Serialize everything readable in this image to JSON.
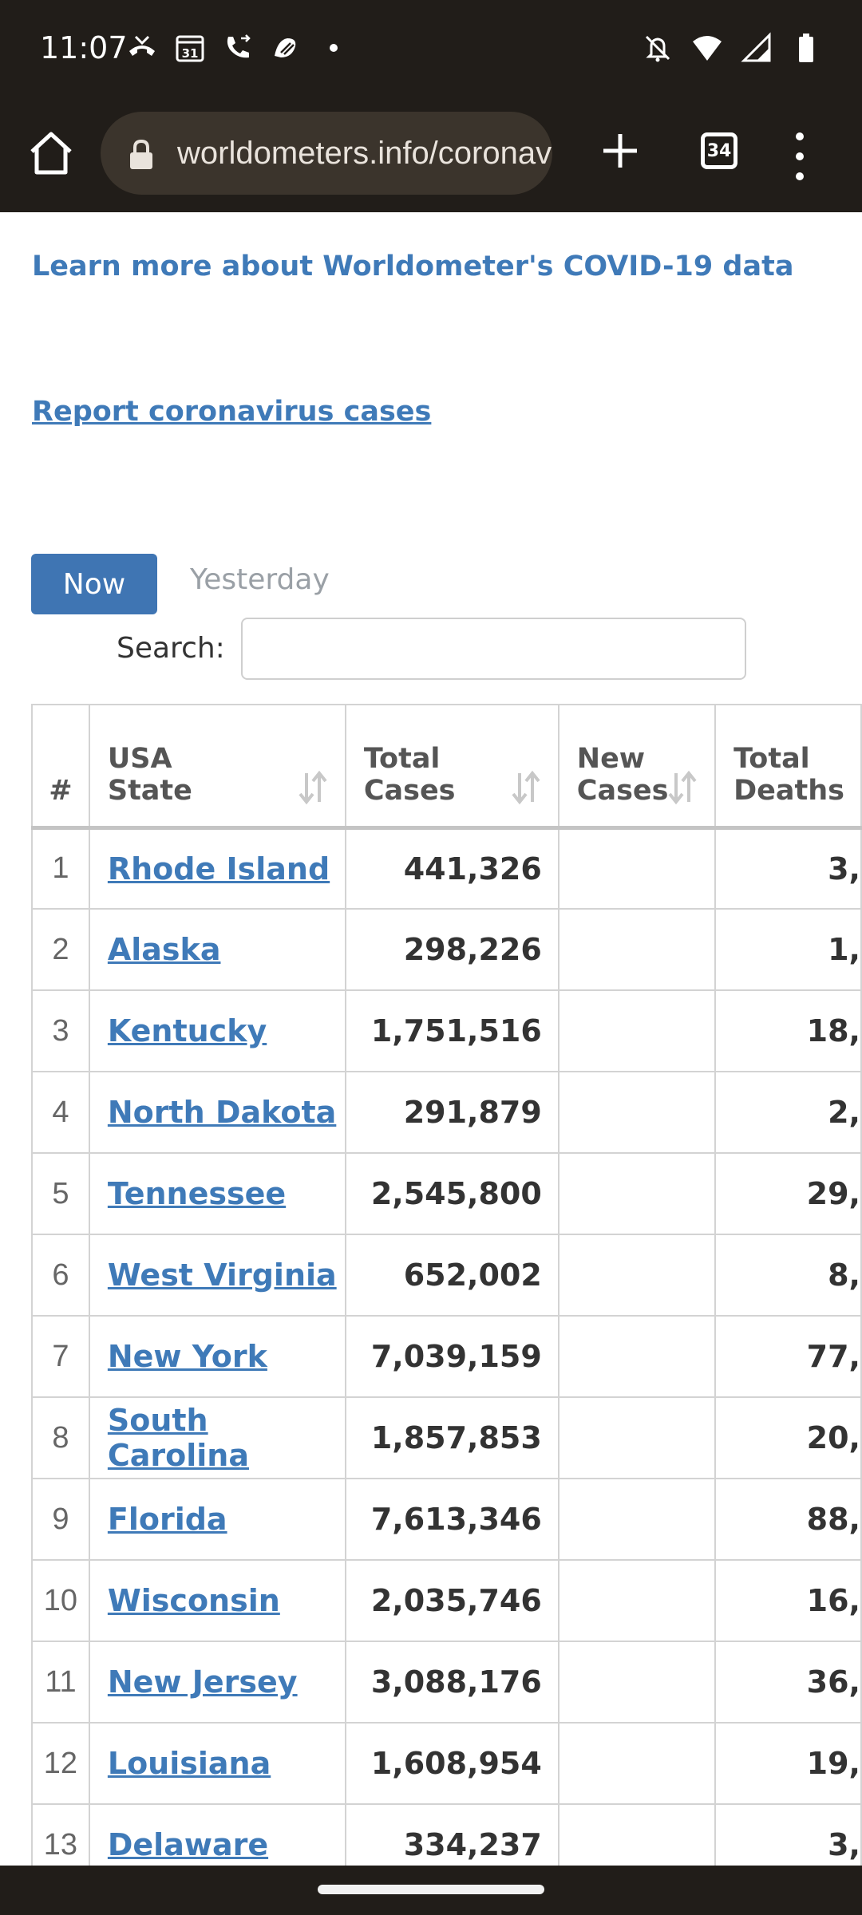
{
  "status_bar": {
    "time": "11:07",
    "left_icons": [
      "missed-call-icon",
      "calendar-icon",
      "call-forward-icon",
      "app-icon",
      "dot-icon"
    ],
    "calendar_day": "31",
    "right_icons": [
      "bell-off-icon",
      "wifi-icon",
      "signal-icon",
      "battery-icon"
    ]
  },
  "browser": {
    "url": "worldometers.info/coronavirus/country/us/",
    "tab_count": "34"
  },
  "page": {
    "learn_more": "Learn more about Worldometer's COVID-19 data",
    "report_link": "Report coronavirus cases",
    "tab_now": "Now",
    "tab_yesterday": "Yesterday",
    "search_label": "Search:",
    "search_value": ""
  },
  "table": {
    "headers": {
      "num": "#",
      "state_line1": "USA",
      "state_line2": "State",
      "total_cases_line1": "Total",
      "total_cases_line2": "Cases",
      "new_cases_line1": "New",
      "new_cases_line2": "Cases",
      "total_deaths_line1": "Total",
      "total_deaths_line2": "Deaths"
    },
    "rows": [
      {
        "idx": "1",
        "state": "Rhode Island",
        "total_cases": "441,326",
        "new_cases": "",
        "total_deaths": "3,"
      },
      {
        "idx": "2",
        "state": "Alaska",
        "total_cases": "298,226",
        "new_cases": "",
        "total_deaths": "1,"
      },
      {
        "idx": "3",
        "state": "Kentucky",
        "total_cases": "1,751,516",
        "new_cases": "",
        "total_deaths": "18,"
      },
      {
        "idx": "4",
        "state": "North Dakota",
        "total_cases": "291,879",
        "new_cases": "",
        "total_deaths": "2,"
      },
      {
        "idx": "5",
        "state": "Tennessee",
        "total_cases": "2,545,800",
        "new_cases": "",
        "total_deaths": "29,"
      },
      {
        "idx": "6",
        "state": "West Virginia",
        "total_cases": "652,002",
        "new_cases": "",
        "total_deaths": "8,"
      },
      {
        "idx": "7",
        "state": "New York",
        "total_cases": "7,039,159",
        "new_cases": "",
        "total_deaths": "77,"
      },
      {
        "idx": "8",
        "state": "South Carolina",
        "total_cases": "1,857,853",
        "new_cases": "",
        "total_deaths": "20,"
      },
      {
        "idx": "9",
        "state": "Florida",
        "total_cases": "7,613,346",
        "new_cases": "",
        "total_deaths": "88,"
      },
      {
        "idx": "10",
        "state": "Wisconsin",
        "total_cases": "2,035,746",
        "new_cases": "",
        "total_deaths": "16,"
      },
      {
        "idx": "11",
        "state": "New Jersey",
        "total_cases": "3,088,176",
        "new_cases": "",
        "total_deaths": "36,"
      },
      {
        "idx": "12",
        "state": "Louisiana",
        "total_cases": "1,608,954",
        "new_cases": "",
        "total_deaths": "19,"
      },
      {
        "idx": "13",
        "state": "Delaware",
        "total_cases": "334,237",
        "new_cases": "",
        "total_deaths": "3,"
      }
    ]
  },
  "colors": {
    "chrome_bg": "#211d19",
    "urlbar_bg": "#3b342c",
    "link": "#3f7ab8",
    "now_button": "#3f75b3"
  }
}
